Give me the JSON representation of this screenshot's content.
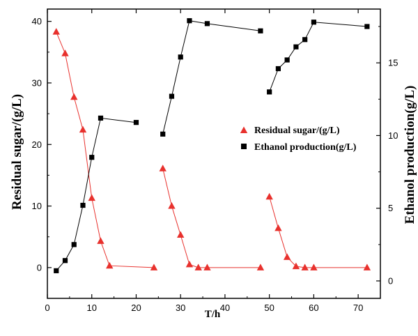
{
  "chart_data": {
    "type": "scatter",
    "xlabel": "T/h",
    "ylabel_left": "Residual sugar/(g/L)",
    "ylabel_right": "Ethanol production(g/L)",
    "xlim": [
      0,
      75
    ],
    "ylim_left": [
      -5,
      42
    ],
    "ylim_right": [
      -1.2,
      18.7
    ],
    "xticks": [
      0,
      10,
      20,
      30,
      40,
      50,
      60,
      70
    ],
    "yticks_left": [
      0,
      10,
      20,
      30,
      40
    ],
    "yticks_right": [
      0,
      5,
      10,
      15
    ],
    "grid": false,
    "legend_position": "center-right",
    "series": [
      {
        "name": "Residual sugar/(g/L)",
        "axis": "left",
        "marker": "triangle",
        "color": "#e8312d",
        "segments": [
          {
            "x": [
              2,
              4,
              6,
              8,
              10,
              12,
              14,
              24
            ],
            "y": [
              38.3,
              34.8,
              27.7,
              22.4,
              11.3,
              4.3,
              0.3,
              0.0
            ]
          },
          {
            "x": [
              26,
              28,
              30,
              32,
              34,
              36,
              48
            ],
            "y": [
              16.1,
              10.0,
              5.3,
              0.5,
              0.0,
              0.0,
              0.0
            ]
          },
          {
            "x": [
              50,
              52,
              54,
              56,
              58,
              60,
              72
            ],
            "y": [
              11.5,
              6.4,
              1.7,
              0.2,
              0.0,
              0.0,
              0.0
            ]
          }
        ]
      },
      {
        "name": "Ethanol production(g/L)",
        "axis": "right",
        "marker": "square",
        "color": "#000000",
        "segments": [
          {
            "x": [
              2,
              4,
              6,
              8,
              10,
              12,
              20
            ],
            "y": [
              0.7,
              1.4,
              2.5,
              5.2,
              8.5,
              11.2,
              10.9
            ]
          },
          {
            "x": [
              26,
              28,
              30,
              32,
              36,
              48
            ],
            "y": [
              10.1,
              12.7,
              15.4,
              17.9,
              17.7,
              17.2
            ]
          },
          {
            "x": [
              50,
              52,
              54,
              56,
              58,
              60,
              72
            ],
            "y": [
              13.0,
              14.6,
              15.2,
              16.1,
              16.6,
              17.8,
              17.5
            ]
          }
        ]
      }
    ]
  }
}
